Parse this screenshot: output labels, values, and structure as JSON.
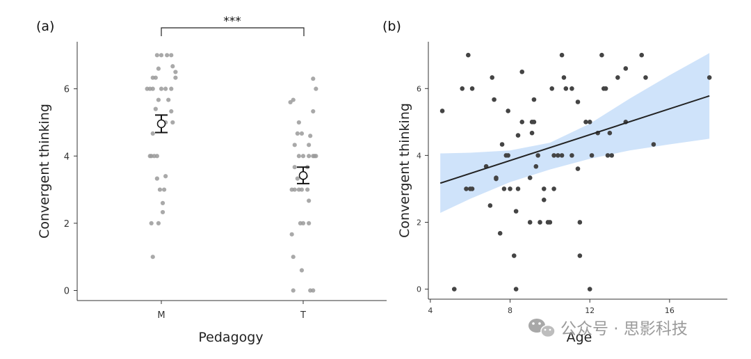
{
  "panel_a_label": "(a)",
  "panel_b_label": "(b)",
  "significance": "***",
  "watermark": "公众号 · 思影科技",
  "chart_data": [
    {
      "type": "scatter",
      "panel": "(a)",
      "xlabel": "Pedagogy",
      "ylabel": "Convergent thinking",
      "categories": [
        "M",
        "T"
      ],
      "yticks": [
        0,
        2,
        4,
        6
      ],
      "ylim": [
        -0.3,
        7.4
      ],
      "grid": false,
      "point_color": "#9a9a9a",
      "series": [
        {
          "category": "M",
          "points": [
            {
              "dx": -0.03,
              "y": 7.0
            },
            {
              "dx": 0.0,
              "y": 7.0
            },
            {
              "dx": 0.04,
              "y": 7.0
            },
            {
              "dx": 0.07,
              "y": 7.0
            },
            {
              "dx": 0.08,
              "y": 6.67
            },
            {
              "dx": -0.02,
              "y": 6.6
            },
            {
              "dx": 0.1,
              "y": 6.5
            },
            {
              "dx": -0.04,
              "y": 6.33
            },
            {
              "dx": -0.06,
              "y": 6.33
            },
            {
              "dx": 0.1,
              "y": 6.33
            },
            {
              "dx": -0.1,
              "y": 6.0
            },
            {
              "dx": -0.08,
              "y": 6.0
            },
            {
              "dx": -0.06,
              "y": 6.0
            },
            {
              "dx": 0.0,
              "y": 6.0
            },
            {
              "dx": 0.03,
              "y": 6.0
            },
            {
              "dx": 0.07,
              "y": 6.0
            },
            {
              "dx": -0.02,
              "y": 5.67
            },
            {
              "dx": 0.05,
              "y": 5.67
            },
            {
              "dx": -0.04,
              "y": 5.4
            },
            {
              "dx": 0.07,
              "y": 5.33
            },
            {
              "dx": 0.03,
              "y": 5.0
            },
            {
              "dx": 0.08,
              "y": 5.0
            },
            {
              "dx": -0.06,
              "y": 4.67
            },
            {
              "dx": -0.08,
              "y": 4.0
            },
            {
              "dx": -0.07,
              "y": 4.0
            },
            {
              "dx": -0.05,
              "y": 4.0
            },
            {
              "dx": -0.03,
              "y": 4.0
            },
            {
              "dx": -0.03,
              "y": 3.33
            },
            {
              "dx": 0.03,
              "y": 3.4
            },
            {
              "dx": -0.01,
              "y": 3.0
            },
            {
              "dx": 0.02,
              "y": 3.0
            },
            {
              "dx": 0.01,
              "y": 2.6
            },
            {
              "dx": 0.01,
              "y": 2.33
            },
            {
              "dx": -0.07,
              "y": 2.0
            },
            {
              "dx": -0.02,
              "y": 2.0
            },
            {
              "dx": -0.06,
              "y": 1.0
            }
          ],
          "mean": 4.96,
          "error_low": 4.7,
          "error_high": 5.22
        },
        {
          "category": "T",
          "points": [
            {
              "dx": 0.07,
              "y": 6.3
            },
            {
              "dx": 0.09,
              "y": 6.0
            },
            {
              "dx": -0.07,
              "y": 5.67
            },
            {
              "dx": -0.09,
              "y": 5.6
            },
            {
              "dx": 0.07,
              "y": 5.33
            },
            {
              "dx": -0.03,
              "y": 5.0
            },
            {
              "dx": -0.04,
              "y": 4.67
            },
            {
              "dx": -0.01,
              "y": 4.67
            },
            {
              "dx": 0.05,
              "y": 4.6
            },
            {
              "dx": -0.06,
              "y": 4.33
            },
            {
              "dx": 0.04,
              "y": 4.33
            },
            {
              "dx": -0.03,
              "y": 4.0
            },
            {
              "dx": 0.0,
              "y": 4.0
            },
            {
              "dx": 0.04,
              "y": 4.0
            },
            {
              "dx": 0.07,
              "y": 4.0
            },
            {
              "dx": 0.08,
              "y": 4.0
            },
            {
              "dx": 0.09,
              "y": 4.0
            },
            {
              "dx": -0.06,
              "y": 3.67
            },
            {
              "dx": 0.03,
              "y": 3.67
            },
            {
              "dx": -0.04,
              "y": 3.33
            },
            {
              "dx": 0.02,
              "y": 3.4
            },
            {
              "dx": -0.08,
              "y": 3.0
            },
            {
              "dx": -0.06,
              "y": 3.0
            },
            {
              "dx": -0.03,
              "y": 3.0
            },
            {
              "dx": -0.01,
              "y": 3.0
            },
            {
              "dx": 0.03,
              "y": 3.0
            },
            {
              "dx": 0.04,
              "y": 2.67
            },
            {
              "dx": -0.02,
              "y": 2.0
            },
            {
              "dx": 0.0,
              "y": 2.0
            },
            {
              "dx": 0.04,
              "y": 2.0
            },
            {
              "dx": -0.08,
              "y": 1.67
            },
            {
              "dx": -0.07,
              "y": 1.0
            },
            {
              "dx": -0.01,
              "y": 0.6
            },
            {
              "dx": -0.07,
              "y": 0.0
            },
            {
              "dx": 0.05,
              "y": 0.0
            },
            {
              "dx": 0.07,
              "y": 0.0
            }
          ],
          "mean": 3.42,
          "error_low": 3.18,
          "error_high": 3.67
        }
      ]
    },
    {
      "type": "scatter",
      "panel": "(b)",
      "xlabel": "Age",
      "ylabel": "Convergent thinking",
      "xticks": [
        4,
        8,
        12,
        16
      ],
      "yticks": [
        0,
        2,
        4,
        6
      ],
      "xlim": [
        3.9,
        18.9
      ],
      "ylim": [
        -0.3,
        7.4
      ],
      "grid": false,
      "point_color": "#444444",
      "points": [
        [
          4.6,
          5.33
        ],
        [
          5.2,
          0.0
        ],
        [
          5.8,
          3.0
        ],
        [
          5.9,
          7.0
        ],
        [
          6.0,
          3.0
        ],
        [
          6.1,
          3.0
        ],
        [
          5.6,
          6.0
        ],
        [
          6.1,
          6.0
        ],
        [
          6.8,
          3.67
        ],
        [
          7.0,
          2.5
        ],
        [
          7.1,
          6.33
        ],
        [
          7.2,
          5.67
        ],
        [
          7.3,
          3.33
        ],
        [
          7.3,
          3.3
        ],
        [
          7.5,
          1.67
        ],
        [
          7.6,
          4.33
        ],
        [
          7.7,
          3.0
        ],
        [
          7.8,
          4.0
        ],
        [
          7.9,
          4.0
        ],
        [
          7.9,
          5.33
        ],
        [
          8.0,
          3.0
        ],
        [
          8.2,
          1.0
        ],
        [
          8.3,
          0.0
        ],
        [
          8.3,
          2.33
        ],
        [
          8.4,
          3.0
        ],
        [
          8.4,
          4.6
        ],
        [
          8.6,
          6.5
        ],
        [
          8.6,
          5.0
        ],
        [
          9.0,
          2.0
        ],
        [
          9.0,
          3.33
        ],
        [
          9.1,
          4.67
        ],
        [
          9.1,
          5.0
        ],
        [
          9.2,
          5.0
        ],
        [
          9.2,
          5.67
        ],
        [
          9.3,
          3.67
        ],
        [
          9.4,
          4.0
        ],
        [
          9.5,
          2.0
        ],
        [
          9.7,
          2.67
        ],
        [
          9.7,
          3.0
        ],
        [
          9.9,
          2.0
        ],
        [
          10.0,
          2.0
        ],
        [
          10.1,
          6.0
        ],
        [
          10.2,
          3.0
        ],
        [
          10.2,
          4.0
        ],
        [
          10.4,
          4.0
        ],
        [
          10.6,
          4.0
        ],
        [
          10.6,
          7.0
        ],
        [
          10.7,
          6.33
        ],
        [
          10.8,
          6.0
        ],
        [
          11.1,
          6.0
        ],
        [
          11.1,
          4.0
        ],
        [
          11.4,
          3.6
        ],
        [
          11.4,
          5.6
        ],
        [
          11.5,
          1.0
        ],
        [
          11.5,
          2.0
        ],
        [
          11.8,
          5.0
        ],
        [
          12.0,
          5.0
        ],
        [
          12.0,
          0.0
        ],
        [
          12.1,
          4.0
        ],
        [
          12.4,
          4.67
        ],
        [
          12.6,
          7.0
        ],
        [
          12.7,
          6.0
        ],
        [
          12.8,
          6.0
        ],
        [
          12.9,
          4.0
        ],
        [
          13.0,
          4.67
        ],
        [
          13.1,
          4.0
        ],
        [
          13.4,
          6.33
        ],
        [
          13.8,
          6.6
        ],
        [
          13.8,
          5.0
        ],
        [
          14.6,
          7.0
        ],
        [
          14.8,
          6.33
        ],
        [
          15.2,
          4.33
        ],
        [
          18.0,
          6.33
        ]
      ],
      "regression": {
        "x": [
          4.5,
          18.0
        ],
        "y": [
          3.17,
          5.78
        ]
      },
      "confidence_band": {
        "x": [
          4.5,
          6,
          8,
          10,
          12,
          14,
          16,
          18
        ],
        "lower": [
          2.28,
          2.7,
          3.2,
          3.58,
          3.9,
          4.15,
          4.33,
          4.5
        ],
        "upper": [
          4.06,
          4.08,
          4.15,
          4.38,
          4.95,
          5.7,
          6.4,
          7.06
        ]
      },
      "band_color": "#cfe3fa",
      "line_color": "#222222"
    }
  ]
}
